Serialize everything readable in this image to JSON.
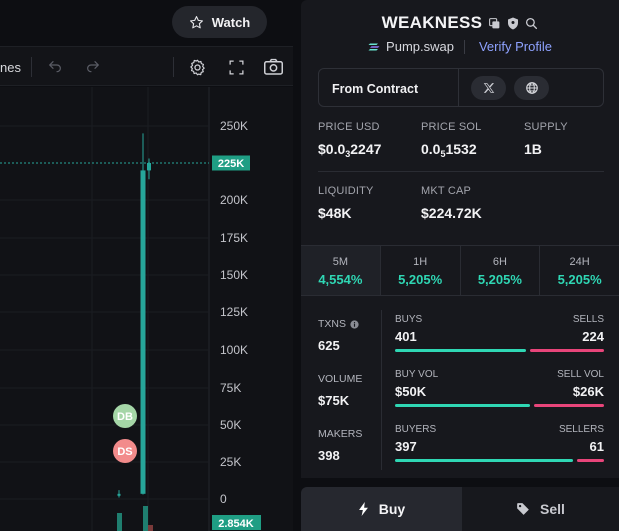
{
  "watch": {
    "label": "Watch",
    "icon": "star-outline-icon"
  },
  "toolbar": {
    "timeframe_label": "nes",
    "icons": [
      "undo-icon",
      "redo-icon",
      "settings-gear-icon",
      "fullscreen-icon",
      "camera-icon"
    ]
  },
  "chart": {
    "price_axis": [
      "250K",
      "200K",
      "175K",
      "150K",
      "125K",
      "100K",
      "75K",
      "50K",
      "25K",
      "0"
    ],
    "current_price_tag": "225K",
    "bottom_tag": "2.854K",
    "markers": {
      "dev_buy": "DB",
      "dev_sell": "DS"
    },
    "colors": {
      "up": "#26a69a",
      "tag": "#1f9e84",
      "dev_buy": "#a5d6a7",
      "dev_sell": "#f28b8b"
    }
  },
  "chart_data": {
    "type": "candlestick",
    "y_axis_ticks": [
      0,
      25000,
      50000,
      75000,
      100000,
      125000,
      150000,
      175000,
      200000,
      250000
    ],
    "current_price": 225000,
    "volume_tag": 2854,
    "candles": [
      {
        "open": 3000,
        "high": 6000,
        "low": 1000,
        "close": 3500
      },
      {
        "open": 3500,
        "high": 245000,
        "low": 3000,
        "close": 220000
      },
      {
        "open": 220000,
        "high": 228000,
        "low": 214000,
        "close": 225000
      }
    ]
  },
  "token": {
    "name": "WEAKNESS",
    "dex": "Pump.swap",
    "verify_label": "Verify Profile",
    "contract_label": "From Contract",
    "header_icons": [
      "copy-icon",
      "shield-icon",
      "search-icon"
    ]
  },
  "stats": {
    "price_usd": {
      "label": "PRICE USD",
      "prefix": "$0.0",
      "sub": "3",
      "suffix": "2247"
    },
    "price_sol": {
      "label": "PRICE SOL",
      "prefix": "0.0",
      "sub": "5",
      "suffix": "1532"
    },
    "supply": {
      "label": "SUPPLY",
      "value": "1B"
    },
    "liquidity": {
      "label": "LIQUIDITY",
      "value": "$48K"
    },
    "mkt_cap": {
      "label": "MKT CAP",
      "value": "$224.72K"
    }
  },
  "timeframes": [
    {
      "label": "5M",
      "value": "4,554%",
      "active": true
    },
    {
      "label": "1H",
      "value": "5,205%",
      "active": false
    },
    {
      "label": "6H",
      "value": "5,205%",
      "active": false
    },
    {
      "label": "24H",
      "value": "5,205%",
      "active": false
    }
  ],
  "metrics": {
    "txns": {
      "label": "TXNS",
      "value": "625"
    },
    "volume": {
      "label": "VOLUME",
      "value": "$75K"
    },
    "makers": {
      "label": "MAKERS",
      "value": "398"
    }
  },
  "splits": {
    "txns": {
      "left_label": "BUYS",
      "left_value": "401",
      "right_label": "SELLS",
      "right_value": "224",
      "buy_share": 0.64
    },
    "volume": {
      "left_label": "BUY VOL",
      "left_value": "$50K",
      "right_label": "SELL VOL",
      "right_value": "$26K",
      "buy_share": 0.66
    },
    "makers": {
      "left_label": "BUYERS",
      "left_value": "397",
      "right_label": "SELLERS",
      "right_value": "61",
      "buy_share": 0.87
    }
  },
  "actions": {
    "buy_label": "Buy",
    "sell_label": "Sell"
  }
}
